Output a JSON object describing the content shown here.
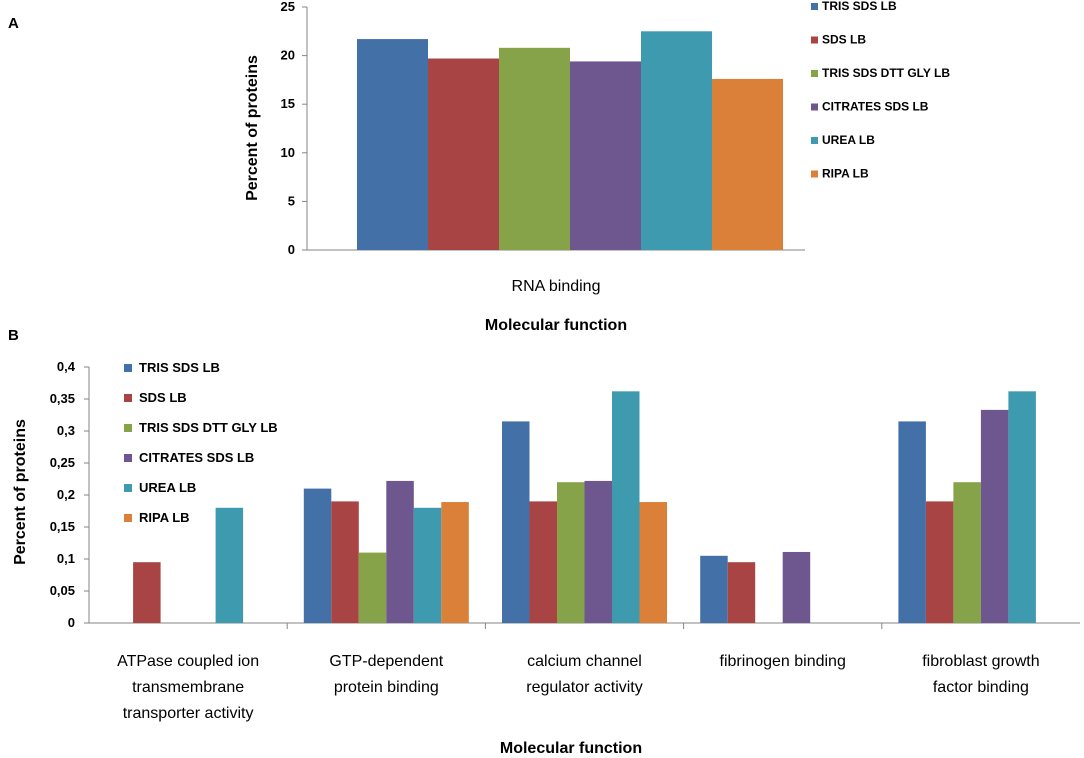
{
  "chart_data": [
    {
      "panel": "A",
      "type": "bar",
      "categories": [
        "RNA binding"
      ],
      "series": [
        {
          "name": "TRIS SDS LB",
          "color": "#4470A8",
          "values": [
            21.7
          ]
        },
        {
          "name": "SDS LB",
          "color": "#A84443",
          "values": [
            19.7
          ]
        },
        {
          "name": "TRIS SDS DTT GLY LB",
          "color": "#86A34A",
          "values": [
            20.8
          ]
        },
        {
          "name": "CITRATES SDS LB",
          "color": "#6E568E",
          "values": [
            19.4
          ]
        },
        {
          "name": "UREA LB",
          "color": "#3E9AAF",
          "values": [
            22.5
          ]
        },
        {
          "name": "RIPA LB",
          "color": "#DA8038",
          "values": [
            17.6
          ]
        }
      ],
      "yticks": [
        "0",
        "5",
        "10",
        "15",
        "20",
        "25"
      ],
      "ylim": [
        0,
        25
      ],
      "ylabel": "Percent of proteins",
      "xlabel": "Molecular function",
      "legend": "right"
    },
    {
      "panel": "B",
      "type": "bar",
      "categories": [
        "ATPase coupled ion transmembrane transporter activity",
        "GTP-dependent protein binding",
        "calcium channel regulator activity",
        "fibrinogen binding",
        "fibroblast growth factor binding"
      ],
      "category_lines": [
        [
          "ATPase coupled ion",
          "transmembrane",
          "transporter activity"
        ],
        [
          "GTP-dependent",
          "protein binding"
        ],
        [
          "calcium channel",
          "regulator activity"
        ],
        [
          "fibrinogen binding"
        ],
        [
          "fibroblast growth",
          "factor binding"
        ]
      ],
      "series": [
        {
          "name": "TRIS SDS LB",
          "color": "#4470A8",
          "values": [
            null,
            0.21,
            0.315,
            0.105,
            0.315
          ]
        },
        {
          "name": "SDS LB",
          "color": "#A84443",
          "values": [
            0.095,
            0.19,
            0.19,
            0.095,
            0.19
          ]
        },
        {
          "name": "TRIS SDS DTT GLY LB",
          "color": "#86A34A",
          "values": [
            null,
            0.11,
            0.22,
            null,
            0.22
          ]
        },
        {
          "name": "CITRATES SDS LB",
          "color": "#6E568E",
          "values": [
            null,
            0.222,
            0.222,
            0.111,
            0.333
          ]
        },
        {
          "name": "UREA LB",
          "color": "#3E9AAF",
          "values": [
            0.18,
            0.18,
            0.362,
            null,
            0.362
          ]
        },
        {
          "name": "RIPA LB",
          "color": "#DA8038",
          "values": [
            null,
            0.189,
            0.189,
            null,
            null
          ]
        }
      ],
      "yticks": [
        "0",
        "0,05",
        "0,1",
        "0,15",
        "0,2",
        "0,25",
        "0,3",
        "0,35",
        "0,4"
      ],
      "ylim": [
        0,
        0.4
      ],
      "ylabel": "Percent of proteins",
      "xlabel": "Molecular function",
      "legend": "top-left"
    }
  ]
}
